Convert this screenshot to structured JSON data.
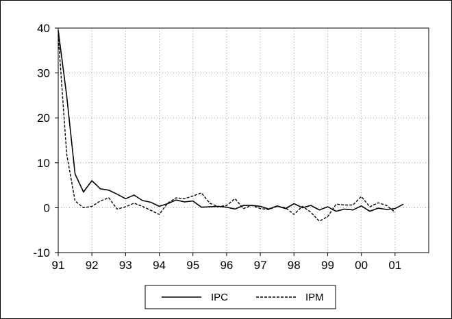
{
  "chart_data": {
    "type": "line",
    "title": "",
    "xlabel": "",
    "ylabel": "",
    "ylim": [
      -10,
      40
    ],
    "xlim": [
      1991.0,
      2002.0
    ],
    "yticks": [
      40,
      30,
      20,
      10,
      0,
      -10
    ],
    "ytick_labels": [
      "40",
      "30",
      "20",
      "10",
      "0",
      "-10"
    ],
    "xticks": [
      1991,
      1992,
      1993,
      1994,
      1995,
      1996,
      1997,
      1998,
      1999,
      2000,
      2001
    ],
    "xtick_labels": [
      "91",
      "92",
      "93",
      "94",
      "95",
      "96",
      "97",
      "98",
      "99",
      "00",
      "01"
    ],
    "grid": true,
    "legend_position": "bottom-center",
    "series": [
      {
        "name": "IPC",
        "style": "solid",
        "color": "#000000",
        "x": [
          1991.0,
          1991.25,
          1991.5,
          1991.75,
          1992.0,
          1992.25,
          1992.5,
          1992.75,
          1993.0,
          1993.25,
          1993.5,
          1993.75,
          1994.0,
          1994.25,
          1994.5,
          1994.75,
          1995.0,
          1995.25,
          1995.5,
          1995.75,
          1996.0,
          1996.25,
          1996.5,
          1996.75,
          1997.0,
          1997.25,
          1997.5,
          1997.75,
          1998.0,
          1998.25,
          1998.5,
          1998.75,
          1999.0,
          1999.25,
          1999.5,
          1999.75,
          2000.0,
          2000.25,
          2000.5,
          2000.75,
          2001.0,
          2001.25
        ],
        "values": [
          39.5,
          25.0,
          7.5,
          3.5,
          6.0,
          4.2,
          3.9,
          3.0,
          2.0,
          2.8,
          1.6,
          1.2,
          0.3,
          0.9,
          1.7,
          1.3,
          1.5,
          0.1,
          0.2,
          0.3,
          0.1,
          -0.3,
          0.5,
          0.5,
          0.3,
          -0.3,
          0.4,
          -0.2,
          0.9,
          0.0,
          0.5,
          -0.5,
          0.2,
          -0.8,
          -0.3,
          -0.5,
          0.4,
          -0.8,
          -0.1,
          -0.4,
          -0.2,
          0.8
        ]
      },
      {
        "name": "IPM",
        "style": "dashed",
        "color": "#000000",
        "x": [
          1991.0,
          1991.25,
          1991.5,
          1991.75,
          1992.0,
          1992.25,
          1992.5,
          1992.75,
          1993.0,
          1993.25,
          1993.5,
          1993.75,
          1994.0,
          1994.25,
          1994.5,
          1994.75,
          1995.0,
          1995.25,
          1995.5,
          1995.75,
          1996.0,
          1996.25,
          1996.5,
          1996.75,
          1997.0,
          1997.25,
          1997.5,
          1997.75,
          1998.0,
          1998.25,
          1998.5,
          1998.75,
          1999.0,
          1999.25,
          1999.5,
          1999.75,
          2000.0,
          2000.25,
          2000.5,
          2000.75,
          2001.0
        ],
        "values": [
          38.5,
          12.0,
          1.5,
          0.0,
          0.3,
          1.5,
          2.2,
          -0.3,
          0.2,
          1.0,
          0.3,
          -0.6,
          -1.5,
          1.0,
          2.2,
          2.0,
          2.6,
          3.3,
          1.0,
          0.2,
          0.5,
          2.0,
          -0.2,
          0.5,
          -0.2,
          -0.4,
          0.3,
          0.0,
          -1.5,
          0.3,
          -1.0,
          -3.0,
          -2.0,
          0.8,
          0.6,
          0.6,
          2.5,
          0.2,
          1.1,
          0.5,
          -1.0
        ]
      }
    ]
  }
}
